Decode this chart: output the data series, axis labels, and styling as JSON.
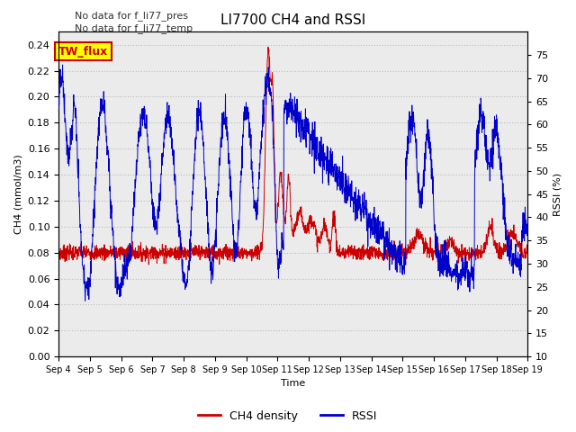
{
  "title": "LI7700 CH4 and RSSI",
  "xlabel": "Time",
  "ylabel_left": "CH4 (mmol/m3)",
  "ylabel_right": "RSSI (%)",
  "annotations": [
    "No data for f_li77_pres",
    "No data for f_li77_temp"
  ],
  "annotation_box_label": "TW_flux",
  "annotation_box_color": "#ffff00",
  "annotation_box_edge": "#cc0000",
  "annotation_box_text_color": "#cc0000",
  "ylim_left": [
    0.0,
    0.25
  ],
  "ylim_right": [
    10,
    80
  ],
  "yticks_left": [
    0.0,
    0.02,
    0.04,
    0.06,
    0.08,
    0.1,
    0.12,
    0.14,
    0.16,
    0.18,
    0.2,
    0.22,
    0.24
  ],
  "yticks_right": [
    10,
    15,
    20,
    25,
    30,
    35,
    40,
    45,
    50,
    55,
    60,
    65,
    70,
    75
  ],
  "xtick_labels": [
    "Sep 4",
    "Sep 5",
    "Sep 6",
    "Sep 7",
    "Sep 8",
    "Sep 9",
    "Sep 10",
    "Sep 11",
    "Sep 12",
    "Sep 13",
    "Sep 14",
    "Sep 15",
    "Sep 16",
    "Sep 17",
    "Sep 18",
    "Sep 19"
  ],
  "grid_color": "#dddddd",
  "ch4_color": "#cc0000",
  "rssi_color": "#0000cc",
  "bg_color": "#ebebeb",
  "legend_ch4": "CH4 density",
  "legend_rssi": "RSSI"
}
